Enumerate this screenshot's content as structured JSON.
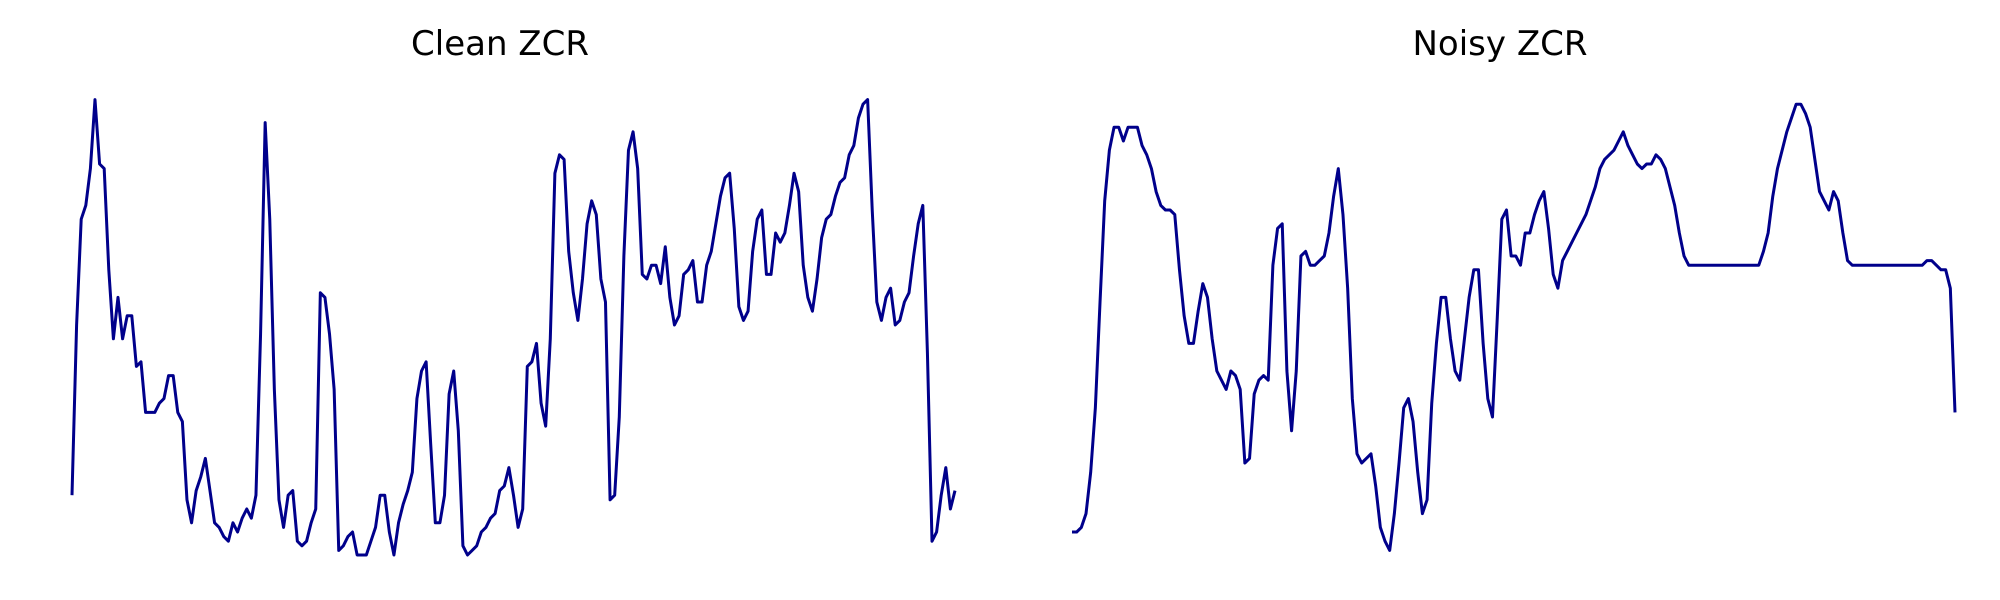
{
  "chart_data": [
    {
      "type": "line",
      "title": "Clean ZCR",
      "xlabel": "",
      "ylabel": "",
      "grid": false,
      "axes_visible": false,
      "line_color": "#00008B",
      "values": [
        0.13,
        0.5,
        0.73,
        0.76,
        0.84,
        0.99,
        0.85,
        0.84,
        0.62,
        0.47,
        0.56,
        0.47,
        0.52,
        0.52,
        0.41,
        0.42,
        0.31,
        0.31,
        0.31,
        0.33,
        0.34,
        0.39,
        0.39,
        0.31,
        0.29,
        0.12,
        0.07,
        0.14,
        0.17,
        0.21,
        0.14,
        0.07,
        0.06,
        0.04,
        0.03,
        0.07,
        0.05,
        0.08,
        0.1,
        0.08,
        0.13,
        0.48,
        0.94,
        0.73,
        0.36,
        0.12,
        0.06,
        0.13,
        0.14,
        0.03,
        0.02,
        0.03,
        0.07,
        0.1,
        0.57,
        0.56,
        0.48,
        0.36,
        0.01,
        0.02,
        0.04,
        0.05,
        0.0,
        0.0,
        0.0,
        0.03,
        0.06,
        0.13,
        0.13,
        0.05,
        0.0,
        0.07,
        0.11,
        0.14,
        0.18,
        0.34,
        0.4,
        0.42,
        0.24,
        0.07,
        0.07,
        0.13,
        0.35,
        0.4,
        0.27,
        0.02,
        0.0,
        0.01,
        0.02,
        0.05,
        0.06,
        0.08,
        0.09,
        0.14,
        0.15,
        0.19,
        0.13,
        0.06,
        0.1,
        0.41,
        0.42,
        0.46,
        0.33,
        0.28,
        0.47,
        0.83,
        0.87,
        0.86,
        0.66,
        0.57,
        0.51,
        0.6,
        0.72,
        0.77,
        0.74,
        0.6,
        0.55,
        0.12,
        0.13,
        0.3,
        0.65,
        0.88,
        0.92,
        0.84,
        0.61,
        0.6,
        0.63,
        0.63,
        0.59,
        0.67,
        0.56,
        0.5,
        0.52,
        0.61,
        0.62,
        0.64,
        0.55,
        0.55,
        0.63,
        0.66,
        0.72,
        0.78,
        0.82,
        0.83,
        0.71,
        0.54,
        0.51,
        0.53,
        0.66,
        0.73,
        0.75,
        0.61,
        0.61,
        0.7,
        0.68,
        0.7,
        0.76,
        0.83,
        0.79,
        0.63,
        0.56,
        0.53,
        0.6,
        0.69,
        0.73,
        0.74,
        0.78,
        0.81,
        0.82,
        0.87,
        0.89,
        0.95,
        0.98,
        0.99,
        0.75,
        0.55,
        0.51,
        0.56,
        0.58,
        0.5,
        0.51,
        0.55,
        0.57,
        0.65,
        0.72,
        0.76,
        0.44,
        0.03,
        0.05,
        0.13,
        0.19,
        0.1,
        0.14
      ]
    },
    {
      "type": "line",
      "title": "Noisy ZCR",
      "xlabel": "",
      "ylabel": "",
      "grid": false,
      "axes_visible": false,
      "line_color": "#00008B",
      "values": [
        0.05,
        0.05,
        0.06,
        0.09,
        0.18,
        0.32,
        0.55,
        0.77,
        0.88,
        0.93,
        0.93,
        0.9,
        0.93,
        0.93,
        0.93,
        0.89,
        0.87,
        0.84,
        0.79,
        0.76,
        0.75,
        0.75,
        0.74,
        0.62,
        0.52,
        0.46,
        0.46,
        0.53,
        0.59,
        0.56,
        0.47,
        0.4,
        0.38,
        0.36,
        0.4,
        0.39,
        0.36,
        0.2,
        0.21,
        0.35,
        0.38,
        0.39,
        0.38,
        0.63,
        0.71,
        0.72,
        0.4,
        0.27,
        0.4,
        0.65,
        0.66,
        0.63,
        0.63,
        0.64,
        0.65,
        0.7,
        0.78,
        0.84,
        0.74,
        0.58,
        0.34,
        0.22,
        0.2,
        0.21,
        0.22,
        0.15,
        0.06,
        0.03,
        0.01,
        0.09,
        0.2,
        0.32,
        0.34,
        0.29,
        0.18,
        0.09,
        0.12,
        0.33,
        0.46,
        0.56,
        0.56,
        0.47,
        0.4,
        0.38,
        0.47,
        0.56,
        0.62,
        0.62,
        0.46,
        0.34,
        0.3,
        0.51,
        0.73,
        0.75,
        0.65,
        0.65,
        0.63,
        0.7,
        0.7,
        0.74,
        0.77,
        0.79,
        0.71,
        0.61,
        0.58,
        0.64,
        0.66,
        0.68,
        0.7,
        0.72,
        0.74,
        0.77,
        0.8,
        0.84,
        0.86,
        0.87,
        0.88,
        0.9,
        0.92,
        0.89,
        0.87,
        0.85,
        0.84,
        0.85,
        0.85,
        0.87,
        0.86,
        0.84,
        0.8,
        0.76,
        0.7,
        0.65,
        0.63,
        0.63,
        0.63,
        0.63,
        0.63,
        0.63,
        0.63,
        0.63,
        0.63,
        0.63,
        0.63,
        0.63,
        0.63,
        0.63,
        0.63,
        0.63,
        0.66,
        0.7,
        0.78,
        0.84,
        0.88,
        0.92,
        0.95,
        0.98,
        0.98,
        0.96,
        0.93,
        0.86,
        0.79,
        0.77,
        0.75,
        0.79,
        0.77,
        0.7,
        0.64,
        0.63,
        0.63,
        0.63,
        0.63,
        0.63,
        0.63,
        0.63,
        0.63,
        0.63,
        0.63,
        0.63,
        0.63,
        0.63,
        0.63,
        0.63,
        0.63,
        0.64,
        0.64,
        0.63,
        0.62,
        0.62,
        0.58,
        0.31
      ]
    }
  ]
}
